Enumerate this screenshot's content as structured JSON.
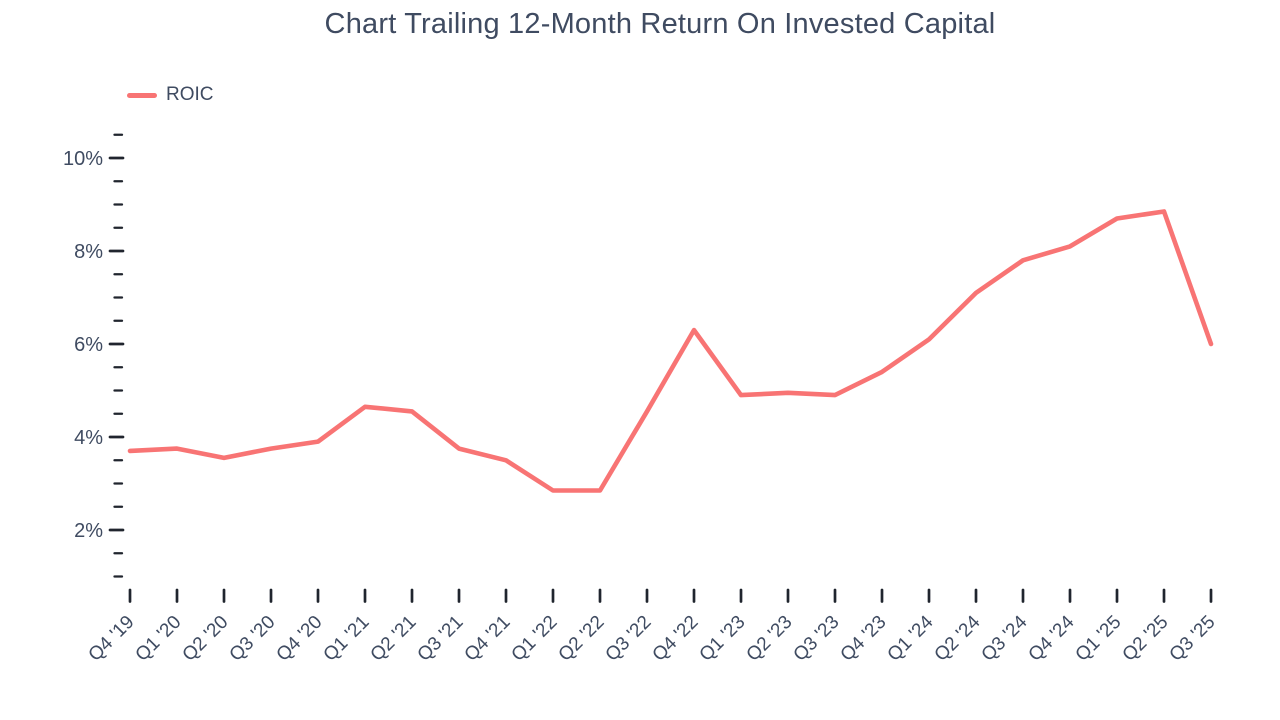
{
  "header": {
    "title": "Chart Trailing 12-Month Return On Invested Capital"
  },
  "legend": {
    "items": [
      {
        "label": "ROIC",
        "color": "#f87474"
      }
    ]
  },
  "chart_data": {
    "type": "line",
    "title": "Chart Trailing 12-Month Return On Invested Capital",
    "categories": [
      "Q4 '19",
      "Q1 '20",
      "Q2 '20",
      "Q3 '20",
      "Q4 '20",
      "Q1 '21",
      "Q2 '21",
      "Q3 '21",
      "Q4 '21",
      "Q1 '22",
      "Q2 '22",
      "Q3 '22",
      "Q4 '22",
      "Q1 '23",
      "Q2 '23",
      "Q3 '23",
      "Q4 '23",
      "Q1 '24",
      "Q2 '24",
      "Q3 '24",
      "Q4 '24",
      "Q1 '25",
      "Q2 '25",
      "Q3 '25"
    ],
    "series": [
      {
        "name": "ROIC",
        "color": "#f87474",
        "values": [
          3.7,
          3.75,
          3.55,
          3.75,
          3.9,
          4.65,
          4.55,
          3.75,
          3.5,
          2.85,
          2.85,
          4.55,
          6.3,
          4.9,
          4.95,
          4.9,
          5.4,
          6.1,
          7.1,
          7.8,
          8.1,
          8.7,
          8.85,
          6.0
        ]
      }
    ],
    "xlabel": "",
    "ylabel": "",
    "y_axis": {
      "major_ticks": [
        2,
        4,
        6,
        8,
        10
      ],
      "major_tick_labels": [
        "2%",
        "4%",
        "6%",
        "8%",
        "10%"
      ],
      "minor_tick_step": 0.5,
      "min_tick": 1.0,
      "max_tick": 10.5,
      "unit": "%"
    },
    "grid": false,
    "legend_position": "top-left",
    "text_color": "#3f4b61",
    "tick_color": "#20252e",
    "x_label_rotation": -45
  }
}
